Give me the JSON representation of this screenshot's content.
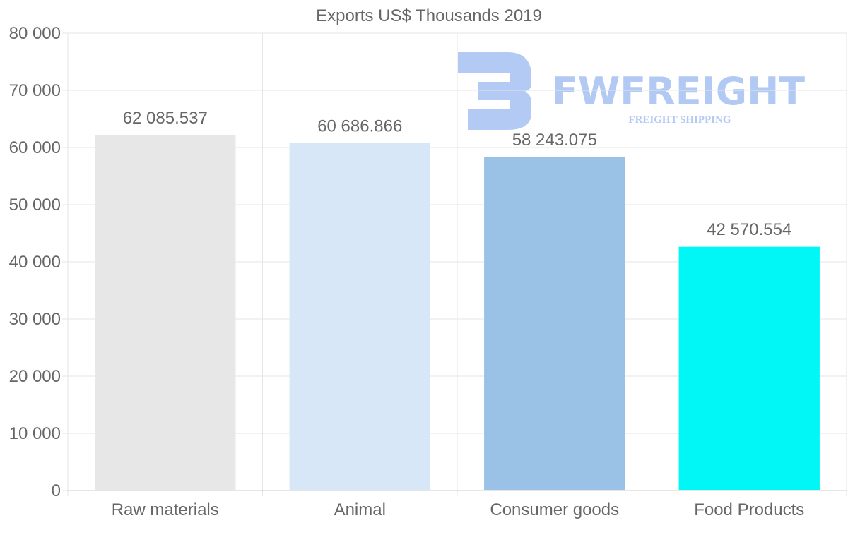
{
  "chart_data": {
    "type": "bar",
    "title": "Exports US$ Thousands 2019",
    "categories": [
      "Raw materials",
      "Animal",
      "Consumer goods",
      "Food Products"
    ],
    "values": [
      62085.537,
      60686.866,
      58243.075,
      42570.554
    ],
    "data_labels": [
      "62 085.537",
      "60 686.866",
      "58 243.075",
      "42 570.554"
    ],
    "bar_colors": [
      "#e7e7e7",
      "#d7e7f8",
      "#9ac2e6",
      "#00f7f6"
    ],
    "ylim": [
      0,
      80000
    ],
    "yticks": [
      0,
      10000,
      20000,
      30000,
      40000,
      50000,
      60000,
      70000,
      80000
    ],
    "ytick_labels": [
      "0",
      "10 000",
      "20 000",
      "30 000",
      "40 000",
      "50 000",
      "60 000",
      "70 000",
      "80 000"
    ],
    "xlabel": "",
    "ylabel": "",
    "grid": true,
    "legend": "none"
  },
  "watermark": {
    "title": "FWFREIGHT",
    "subtitle": "FREIGHT SHIPPING",
    "color": "#7fa6ec"
  },
  "colors": {
    "text": "#666666",
    "grid": "#e6e6e6",
    "axis": "#cccccc"
  }
}
